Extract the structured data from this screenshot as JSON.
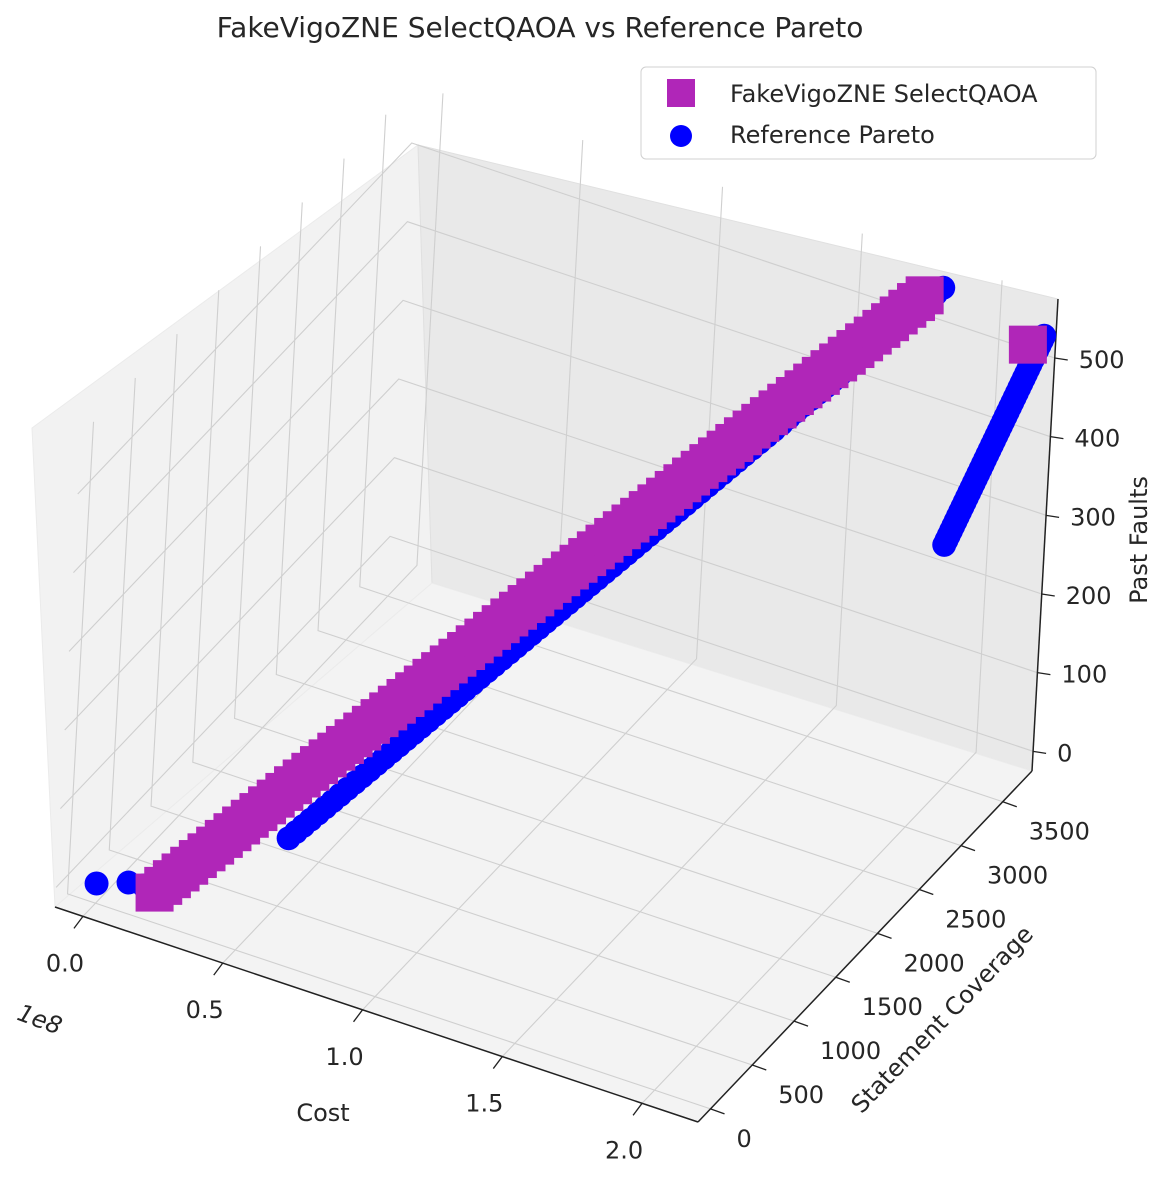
{
  "chart_data": {
    "type": "scatter",
    "projection": "3d",
    "title": "FakeVigoZNE SelectQAOA vs Reference Pareto",
    "xlabel": "Cost",
    "ylabel": "Statement Coverage",
    "zlabel": "Past Faults",
    "x_offset_label": "1e8",
    "x_ticks": [
      0.0,
      0.5,
      1.0,
      1.5,
      2.0
    ],
    "x_tick_labels": [
      "0.0",
      "0.5",
      "1.0",
      "1.5",
      "2.0"
    ],
    "y_ticks": [
      0,
      500,
      1000,
      1500,
      2000,
      2500,
      3000,
      3500
    ],
    "y_tick_labels": [
      "0",
      "500",
      "1000",
      "1500",
      "2000",
      "2500",
      "3000",
      "3500"
    ],
    "z_ticks": [
      0,
      100,
      200,
      300,
      400,
      500
    ],
    "z_tick_labels": [
      "0",
      "100",
      "200",
      "300",
      "400",
      "500"
    ],
    "xlim": [
      -0.1,
      2.2
    ],
    "ylim": [
      -150,
      3850
    ],
    "zlim": [
      -25,
      575
    ],
    "grid": true,
    "legend_position": "top-right",
    "series": [
      {
        "name": "FakeVigoZNE SelectQAOA",
        "marker": "square",
        "color": "#b026b8",
        "segments": [
          {
            "x": [
              0.2,
              1.8
            ],
            "y": [
              20,
              3600
            ],
            "z": [
              10,
              560
            ]
          },
          {
            "x": [
              2.15,
              2.15
            ],
            "y": [
              3680,
              3680
            ],
            "z": [
              530,
              530
            ]
          }
        ]
      },
      {
        "name": "Reference Pareto",
        "marker": "circle",
        "color": "#0000ff",
        "points": [
          {
            "x": 0.0,
            "y": 0,
            "z": 0
          },
          {
            "x": 0.09,
            "y": 80,
            "z": 3
          },
          {
            "x": 0.14,
            "y": 90,
            "z": 4
          }
        ],
        "segments": [
          {
            "x": [
              0.5,
              1.85
            ],
            "y": [
              600,
              3650
            ],
            "z": [
              50,
              570
            ]
          },
          {
            "x": [
              2.0,
              2.2
            ],
            "y": [
              3300,
              3700
            ],
            "z": [
              300,
              545
            ]
          }
        ]
      }
    ]
  }
}
